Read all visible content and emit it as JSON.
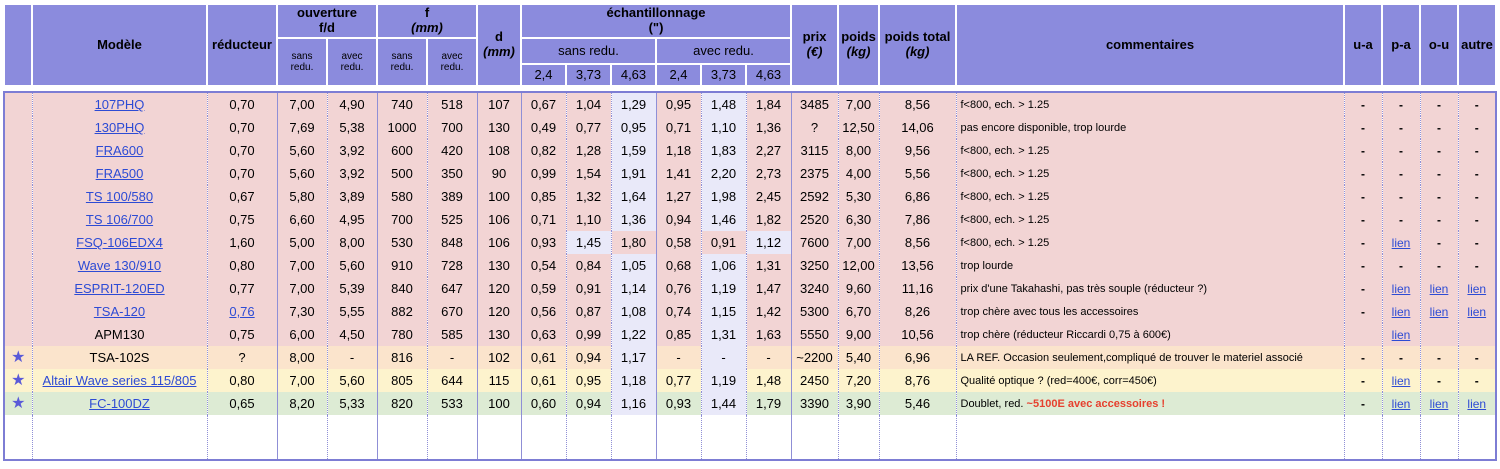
{
  "colors": {
    "header_bg": "#8b8bdd",
    "link": "#2d4bd4",
    "highlight_red": "#e6402e",
    "row_pink": "#f2d4d4",
    "row_peach": "#fbe4cc",
    "row_yellow": "#fdf3cd",
    "row_green": "#ddebd4",
    "cell_highlight": "#e9e9f9"
  },
  "icons": {
    "star": "★"
  },
  "header": {
    "model": "Modèle",
    "reducer": "réducteur",
    "aperture": {
      "label": "ouverture",
      "sub": "f/d"
    },
    "focal": {
      "label": "f",
      "unit": "(mm)"
    },
    "cols_sans": "sans redu.",
    "cols_avec": "avec redu.",
    "diameter": {
      "label": "d",
      "unit": "(mm)"
    },
    "sampling": {
      "label": "échantillonnage",
      "unit": "(\")",
      "sans": "sans redu.",
      "avec": "avec redu.",
      "ticks": [
        "2,4",
        "3,73",
        "4,63"
      ]
    },
    "price": {
      "label": "prix",
      "unit": "(€)"
    },
    "weight": {
      "label": "poids",
      "unit": "(kg)"
    },
    "weight_total": {
      "label": "poids total",
      "unit": "(kg)"
    },
    "comments": "commentaires",
    "link_cols": [
      "u-a",
      "p-a",
      "o-u",
      "autre"
    ]
  },
  "rows": [
    {
      "starred": false,
      "tone": "pink",
      "model": "107PHQ",
      "model_link": true,
      "reducer": "0,70",
      "reducer_link": false,
      "aperture_sans": "7,00",
      "aperture_avec": "4,90",
      "f_sans": "740",
      "f_avec": "518",
      "d": "107",
      "ech": [
        "0,67",
        "1,04",
        "1,29",
        "0,95",
        "1,48",
        "1,84"
      ],
      "ech_hl": [
        2,
        4
      ],
      "price": "3485",
      "weight": "7,00",
      "weight_total": "8,56",
      "comment": "f<800, ech. > 1.25",
      "comment_red": "",
      "links": [
        "-",
        "-",
        "-",
        "-"
      ]
    },
    {
      "starred": false,
      "tone": "pink",
      "model": "130PHQ",
      "model_link": true,
      "reducer": "0,70",
      "reducer_link": false,
      "aperture_sans": "7,69",
      "aperture_avec": "5,38",
      "f_sans": "1000",
      "f_avec": "700",
      "d": "130",
      "ech": [
        "0,49",
        "0,77",
        "0,95",
        "0,71",
        "1,10",
        "1,36"
      ],
      "ech_hl": [
        2,
        4
      ],
      "price": "?",
      "weight": "12,50",
      "weight_total": "14,06",
      "comment": "pas encore disponible, trop lourde",
      "comment_red": "",
      "links": [
        "-",
        "-",
        "-",
        "-"
      ]
    },
    {
      "starred": false,
      "tone": "pink",
      "model": "FRA600",
      "model_link": true,
      "reducer": "0,70",
      "reducer_link": false,
      "aperture_sans": "5,60",
      "aperture_avec": "3,92",
      "f_sans": "600",
      "f_avec": "420",
      "d": "108",
      "ech": [
        "0,82",
        "1,28",
        "1,59",
        "1,18",
        "1,83",
        "2,27"
      ],
      "ech_hl": [
        2,
        4
      ],
      "price": "3115",
      "weight": "8,00",
      "weight_total": "9,56",
      "comment": "f<800, ech. > 1.25",
      "comment_red": "",
      "links": [
        "-",
        "-",
        "-",
        "-"
      ]
    },
    {
      "starred": false,
      "tone": "pink",
      "model": "FRA500",
      "model_link": true,
      "reducer": "0,70",
      "reducer_link": false,
      "aperture_sans": "5,60",
      "aperture_avec": "3,92",
      "f_sans": "500",
      "f_avec": "350",
      "d": "90",
      "ech": [
        "0,99",
        "1,54",
        "1,91",
        "1,41",
        "2,20",
        "2,73"
      ],
      "ech_hl": [
        2,
        4
      ],
      "price": "2375",
      "weight": "4,00",
      "weight_total": "5,56",
      "comment": "f<800, ech. > 1.25",
      "comment_red": "",
      "links": [
        "-",
        "-",
        "-",
        "-"
      ]
    },
    {
      "starred": false,
      "tone": "pink",
      "model": "TS 100/580",
      "model_link": true,
      "reducer": "0,67",
      "reducer_link": false,
      "aperture_sans": "5,80",
      "aperture_avec": "3,89",
      "f_sans": "580",
      "f_avec": "389",
      "d": "100",
      "ech": [
        "0,85",
        "1,32",
        "1,64",
        "1,27",
        "1,98",
        "2,45"
      ],
      "ech_hl": [
        2,
        4
      ],
      "price": "2592",
      "weight": "5,30",
      "weight_total": "6,86",
      "comment": "f<800, ech. > 1.25",
      "comment_red": "",
      "links": [
        "-",
        "-",
        "-",
        "-"
      ]
    },
    {
      "starred": false,
      "tone": "pink",
      "model": "TS 106/700",
      "model_link": true,
      "reducer": "0,75",
      "reducer_link": false,
      "aperture_sans": "6,60",
      "aperture_avec": "4,95",
      "f_sans": "700",
      "f_avec": "525",
      "d": "106",
      "ech": [
        "0,71",
        "1,10",
        "1,36",
        "0,94",
        "1,46",
        "1,82"
      ],
      "ech_hl": [
        2,
        4
      ],
      "price": "2520",
      "weight": "6,30",
      "weight_total": "7,86",
      "comment": "f<800, ech. > 1.25",
      "comment_red": "",
      "links": [
        "-",
        "-",
        "-",
        "-"
      ]
    },
    {
      "starred": false,
      "tone": "pink",
      "model": "FSQ-106EDX4",
      "model_link": true,
      "reducer": "1,60",
      "reducer_link": false,
      "aperture_sans": "5,00",
      "aperture_avec": "8,00",
      "f_sans": "530",
      "f_avec": "848",
      "d": "106",
      "ech": [
        "0,93",
        "1,45",
        "1,80",
        "0,58",
        "0,91",
        "1,12"
      ],
      "ech_hl": [
        1,
        5
      ],
      "price": "7600",
      "weight": "7,00",
      "weight_total": "8,56",
      "comment": "f<800, ech. > 1.25",
      "comment_red": "",
      "links": [
        "-",
        "lien",
        "-",
        "-"
      ]
    },
    {
      "starred": false,
      "tone": "pink",
      "model": "Wave 130/910",
      "model_link": true,
      "reducer": "0,80",
      "reducer_link": false,
      "aperture_sans": "7,00",
      "aperture_avec": "5,60",
      "f_sans": "910",
      "f_avec": "728",
      "d": "130",
      "ech": [
        "0,54",
        "0,84",
        "1,05",
        "0,68",
        "1,06",
        "1,31"
      ],
      "ech_hl": [
        2,
        4
      ],
      "price": "3250",
      "weight": "12,00",
      "weight_total": "13,56",
      "comment": "trop lourde",
      "comment_red": "",
      "links": [
        "-",
        "-",
        "-",
        "-"
      ]
    },
    {
      "starred": false,
      "tone": "pink",
      "model": "ESPRIT-120ED",
      "model_link": true,
      "reducer": "0,77",
      "reducer_link": false,
      "aperture_sans": "7,00",
      "aperture_avec": "5,39",
      "f_sans": "840",
      "f_avec": "647",
      "d": "120",
      "ech": [
        "0,59",
        "0,91",
        "1,14",
        "0,76",
        "1,19",
        "1,47"
      ],
      "ech_hl": [
        2,
        4
      ],
      "price": "3240",
      "weight": "9,60",
      "weight_total": "11,16",
      "comment": "prix d'une Takahashi, pas très souple (réducteur ?)",
      "comment_red": "",
      "links": [
        "-",
        "lien",
        "lien",
        "lien"
      ]
    },
    {
      "starred": false,
      "tone": "pink",
      "model": "TSA-120",
      "model_link": true,
      "reducer": "0,76",
      "reducer_link": true,
      "aperture_sans": "7,30",
      "aperture_avec": "5,55",
      "f_sans": "882",
      "f_avec": "670",
      "d": "120",
      "ech": [
        "0,56",
        "0,87",
        "1,08",
        "0,74",
        "1,15",
        "1,42"
      ],
      "ech_hl": [
        2,
        4
      ],
      "price": "5300",
      "weight": "6,70",
      "weight_total": "8,26",
      "comment": "trop chère avec tous les accessoires",
      "comment_red": "",
      "links": [
        "-",
        "lien",
        "lien",
        "lien"
      ]
    },
    {
      "starred": false,
      "tone": "pink",
      "model": "APM130",
      "model_link": false,
      "reducer": "0,75",
      "reducer_link": false,
      "aperture_sans": "6,00",
      "aperture_avec": "4,50",
      "f_sans": "780",
      "f_avec": "585",
      "d": "130",
      "ech": [
        "0,63",
        "0,99",
        "1,22",
        "0,85",
        "1,31",
        "1,63"
      ],
      "ech_hl": [
        2,
        4
      ],
      "price": "5550",
      "weight": "9,00",
      "weight_total": "10,56",
      "comment": "trop chère (réducteur Riccardi 0,75 à 600€)",
      "comment_red": "",
      "links": [
        "",
        "lien",
        "",
        ""
      ]
    },
    {
      "starred": true,
      "tone": "peach",
      "model": "TSA-102S",
      "model_link": false,
      "reducer": "?",
      "reducer_link": false,
      "aperture_sans": "8,00",
      "aperture_avec": "-",
      "f_sans": "816",
      "f_avec": "-",
      "d": "102",
      "ech": [
        "0,61",
        "0,94",
        "1,17",
        "-",
        "-",
        "-"
      ],
      "ech_hl": [
        2,
        4
      ],
      "price": "~2200",
      "weight": "5,40",
      "weight_total": "6,96",
      "comment": "LA REF. Occasion seulement,compliqué de trouver le materiel associé",
      "comment_red": "",
      "links": [
        "-",
        "-",
        "-",
        "-"
      ]
    },
    {
      "starred": true,
      "tone": "yellow",
      "model": "Altair Wave series 115/805",
      "model_link": true,
      "reducer": "0,80",
      "reducer_link": false,
      "aperture_sans": "7,00",
      "aperture_avec": "5,60",
      "f_sans": "805",
      "f_avec": "644",
      "d": "115",
      "ech": [
        "0,61",
        "0,95",
        "1,18",
        "0,77",
        "1,19",
        "1,48"
      ],
      "ech_hl": [
        2,
        4
      ],
      "price": "2450",
      "weight": "7,20",
      "weight_total": "8,76",
      "comment": "Qualité optique ? (red=400€, corr=450€)",
      "comment_red": "",
      "links": [
        "-",
        "lien",
        "-",
        "-"
      ]
    },
    {
      "starred": true,
      "tone": "green",
      "model": "FC-100DZ",
      "model_link": true,
      "reducer": "0,65",
      "reducer_link": false,
      "aperture_sans": "8,20",
      "aperture_avec": "5,33",
      "f_sans": "820",
      "f_avec": "533",
      "d": "100",
      "ech": [
        "0,60",
        "0,94",
        "1,16",
        "0,93",
        "1,44",
        "1,79"
      ],
      "ech_hl": [
        2,
        4
      ],
      "price": "3390",
      "weight": "3,90",
      "weight_total": "5,46",
      "comment": "Doublet, red. ",
      "comment_red": "~5100E avec accessoires !",
      "links": [
        "-",
        "lien",
        "lien",
        "lien"
      ]
    }
  ]
}
